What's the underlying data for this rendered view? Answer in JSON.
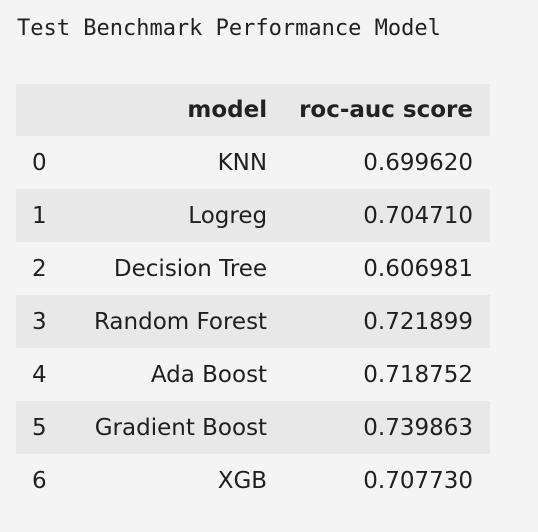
{
  "title": "Test Benchmark Performance Model",
  "table": {
    "columns": [
      "",
      "model",
      "roc-auc score"
    ],
    "rows": [
      {
        "index": "0",
        "model": "KNN",
        "score": "0.699620"
      },
      {
        "index": "1",
        "model": "Logreg",
        "score": "0.704710"
      },
      {
        "index": "2",
        "model": "Decision Tree",
        "score": "0.606981"
      },
      {
        "index": "3",
        "model": "Random Forest",
        "score": "0.721899"
      },
      {
        "index": "4",
        "model": "Ada Boost",
        "score": "0.718752"
      },
      {
        "index": "5",
        "model": "Gradient Boost",
        "score": "0.739863"
      },
      {
        "index": "6",
        "model": "XGB",
        "score": "0.707730"
      }
    ]
  }
}
